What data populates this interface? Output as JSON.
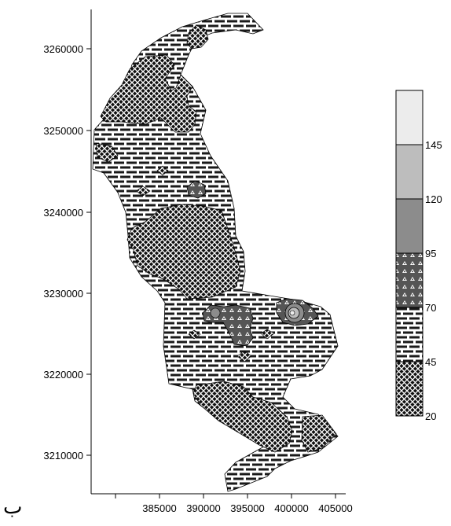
{
  "figure_label": "ب",
  "map": {
    "x_ticks": [
      "385000",
      "390000",
      "395000",
      "400000",
      "405000"
    ],
    "y_ticks": [
      "3260000",
      "3250000",
      "3240000",
      "3230000",
      "3220000",
      "3210000"
    ]
  },
  "legend": {
    "tick_labels": [
      "145",
      "120",
      "95",
      "70",
      "45",
      "20"
    ],
    "classes": [
      {
        "range": [
          145,
          170
        ],
        "pattern": "light-gray-fill",
        "color": "#ececec"
      },
      {
        "range": [
          120,
          145
        ],
        "pattern": "gray-fill",
        "color": "#bdbdbd"
      },
      {
        "range": [
          95,
          120
        ],
        "pattern": "dark-gray-fill",
        "color": "#8c8c8c"
      },
      {
        "range": [
          70,
          95
        ],
        "pattern": "triangle-dot-pattern",
        "color": "#555555"
      },
      {
        "range": [
          45,
          70
        ],
        "pattern": "brick-pattern",
        "color": "#1a1a1a"
      },
      {
        "range": [
          20,
          45
        ],
        "pattern": "crosshatch-pattern",
        "color": "#000000"
      }
    ]
  }
}
